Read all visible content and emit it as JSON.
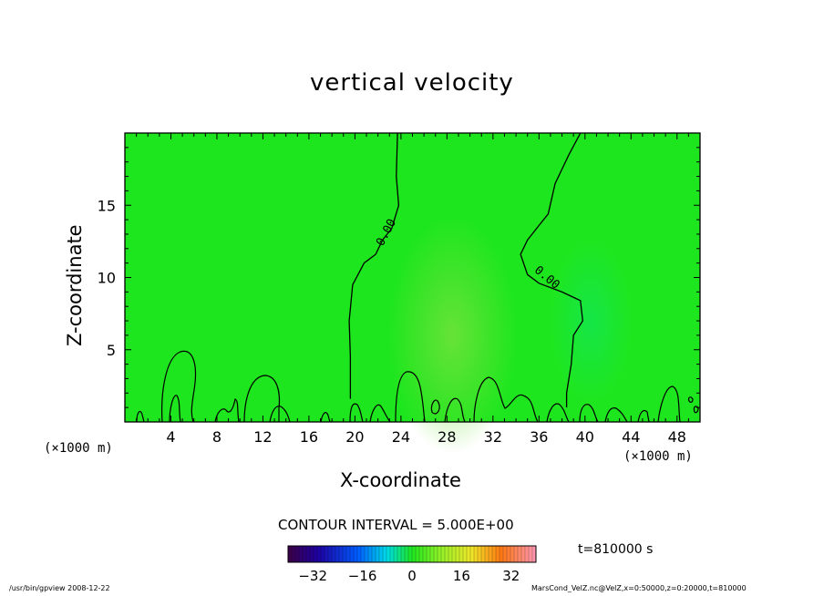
{
  "chart_data": {
    "type": "heatmap",
    "title": "vertical velocity",
    "xlabel": "X-coordinate",
    "ylabel": "Z-coordinate",
    "x_unit": "(×1000 m)",
    "xlim": [
      0,
      50
    ],
    "ylim": [
      0,
      20
    ],
    "xticks": [
      4,
      8,
      12,
      16,
      20,
      24,
      28,
      32,
      36,
      40,
      44,
      48
    ],
    "yticks": [
      5,
      10,
      15
    ],
    "contour_interval": "CONTOUR INTERVAL = 5.000E+00",
    "contour_labels": [
      {
        "text": "0.00",
        "x": 23,
        "y": 13
      },
      {
        "text": "0.00",
        "x": 36.5,
        "y": 9.8
      }
    ],
    "zero_contours": [
      [
        [
          23.7,
          20
        ],
        [
          23.6,
          17
        ],
        [
          23.8,
          15
        ],
        [
          23.2,
          13.4
        ],
        [
          22.4,
          12.6
        ],
        [
          21.8,
          11.6
        ],
        [
          20.8,
          11
        ],
        [
          19.8,
          9.5
        ],
        [
          19.5,
          7
        ],
        [
          19.6,
          4.5
        ],
        [
          19.6,
          1.6
        ]
      ],
      [
        [
          39.6,
          20
        ],
        [
          38.6,
          18.5
        ],
        [
          37.4,
          16.5
        ],
        [
          36.8,
          14.4
        ],
        [
          36,
          13.6
        ],
        [
          35,
          12.6
        ],
        [
          34.4,
          11.6
        ],
        [
          35,
          10.2
        ],
        [
          36,
          9.6
        ],
        [
          38,
          9
        ],
        [
          39.6,
          8.4
        ],
        [
          39.8,
          7
        ],
        [
          39,
          6
        ],
        [
          38.8,
          4
        ],
        [
          38.4,
          2
        ],
        [
          38.4,
          1
        ]
      ]
    ],
    "colorbar": {
      "ticks": [
        -32,
        -16,
        0,
        16,
        32
      ],
      "range": [
        -40,
        40
      ]
    },
    "background_color": "#1ee61e",
    "time_label": "t=810000 s"
  },
  "footer": {
    "left": "/usr/bin/gpview   2008-12-22",
    "right": "MarsCond_VelZ.nc@VelZ,x=0:50000,z=0:20000,t=810000"
  }
}
